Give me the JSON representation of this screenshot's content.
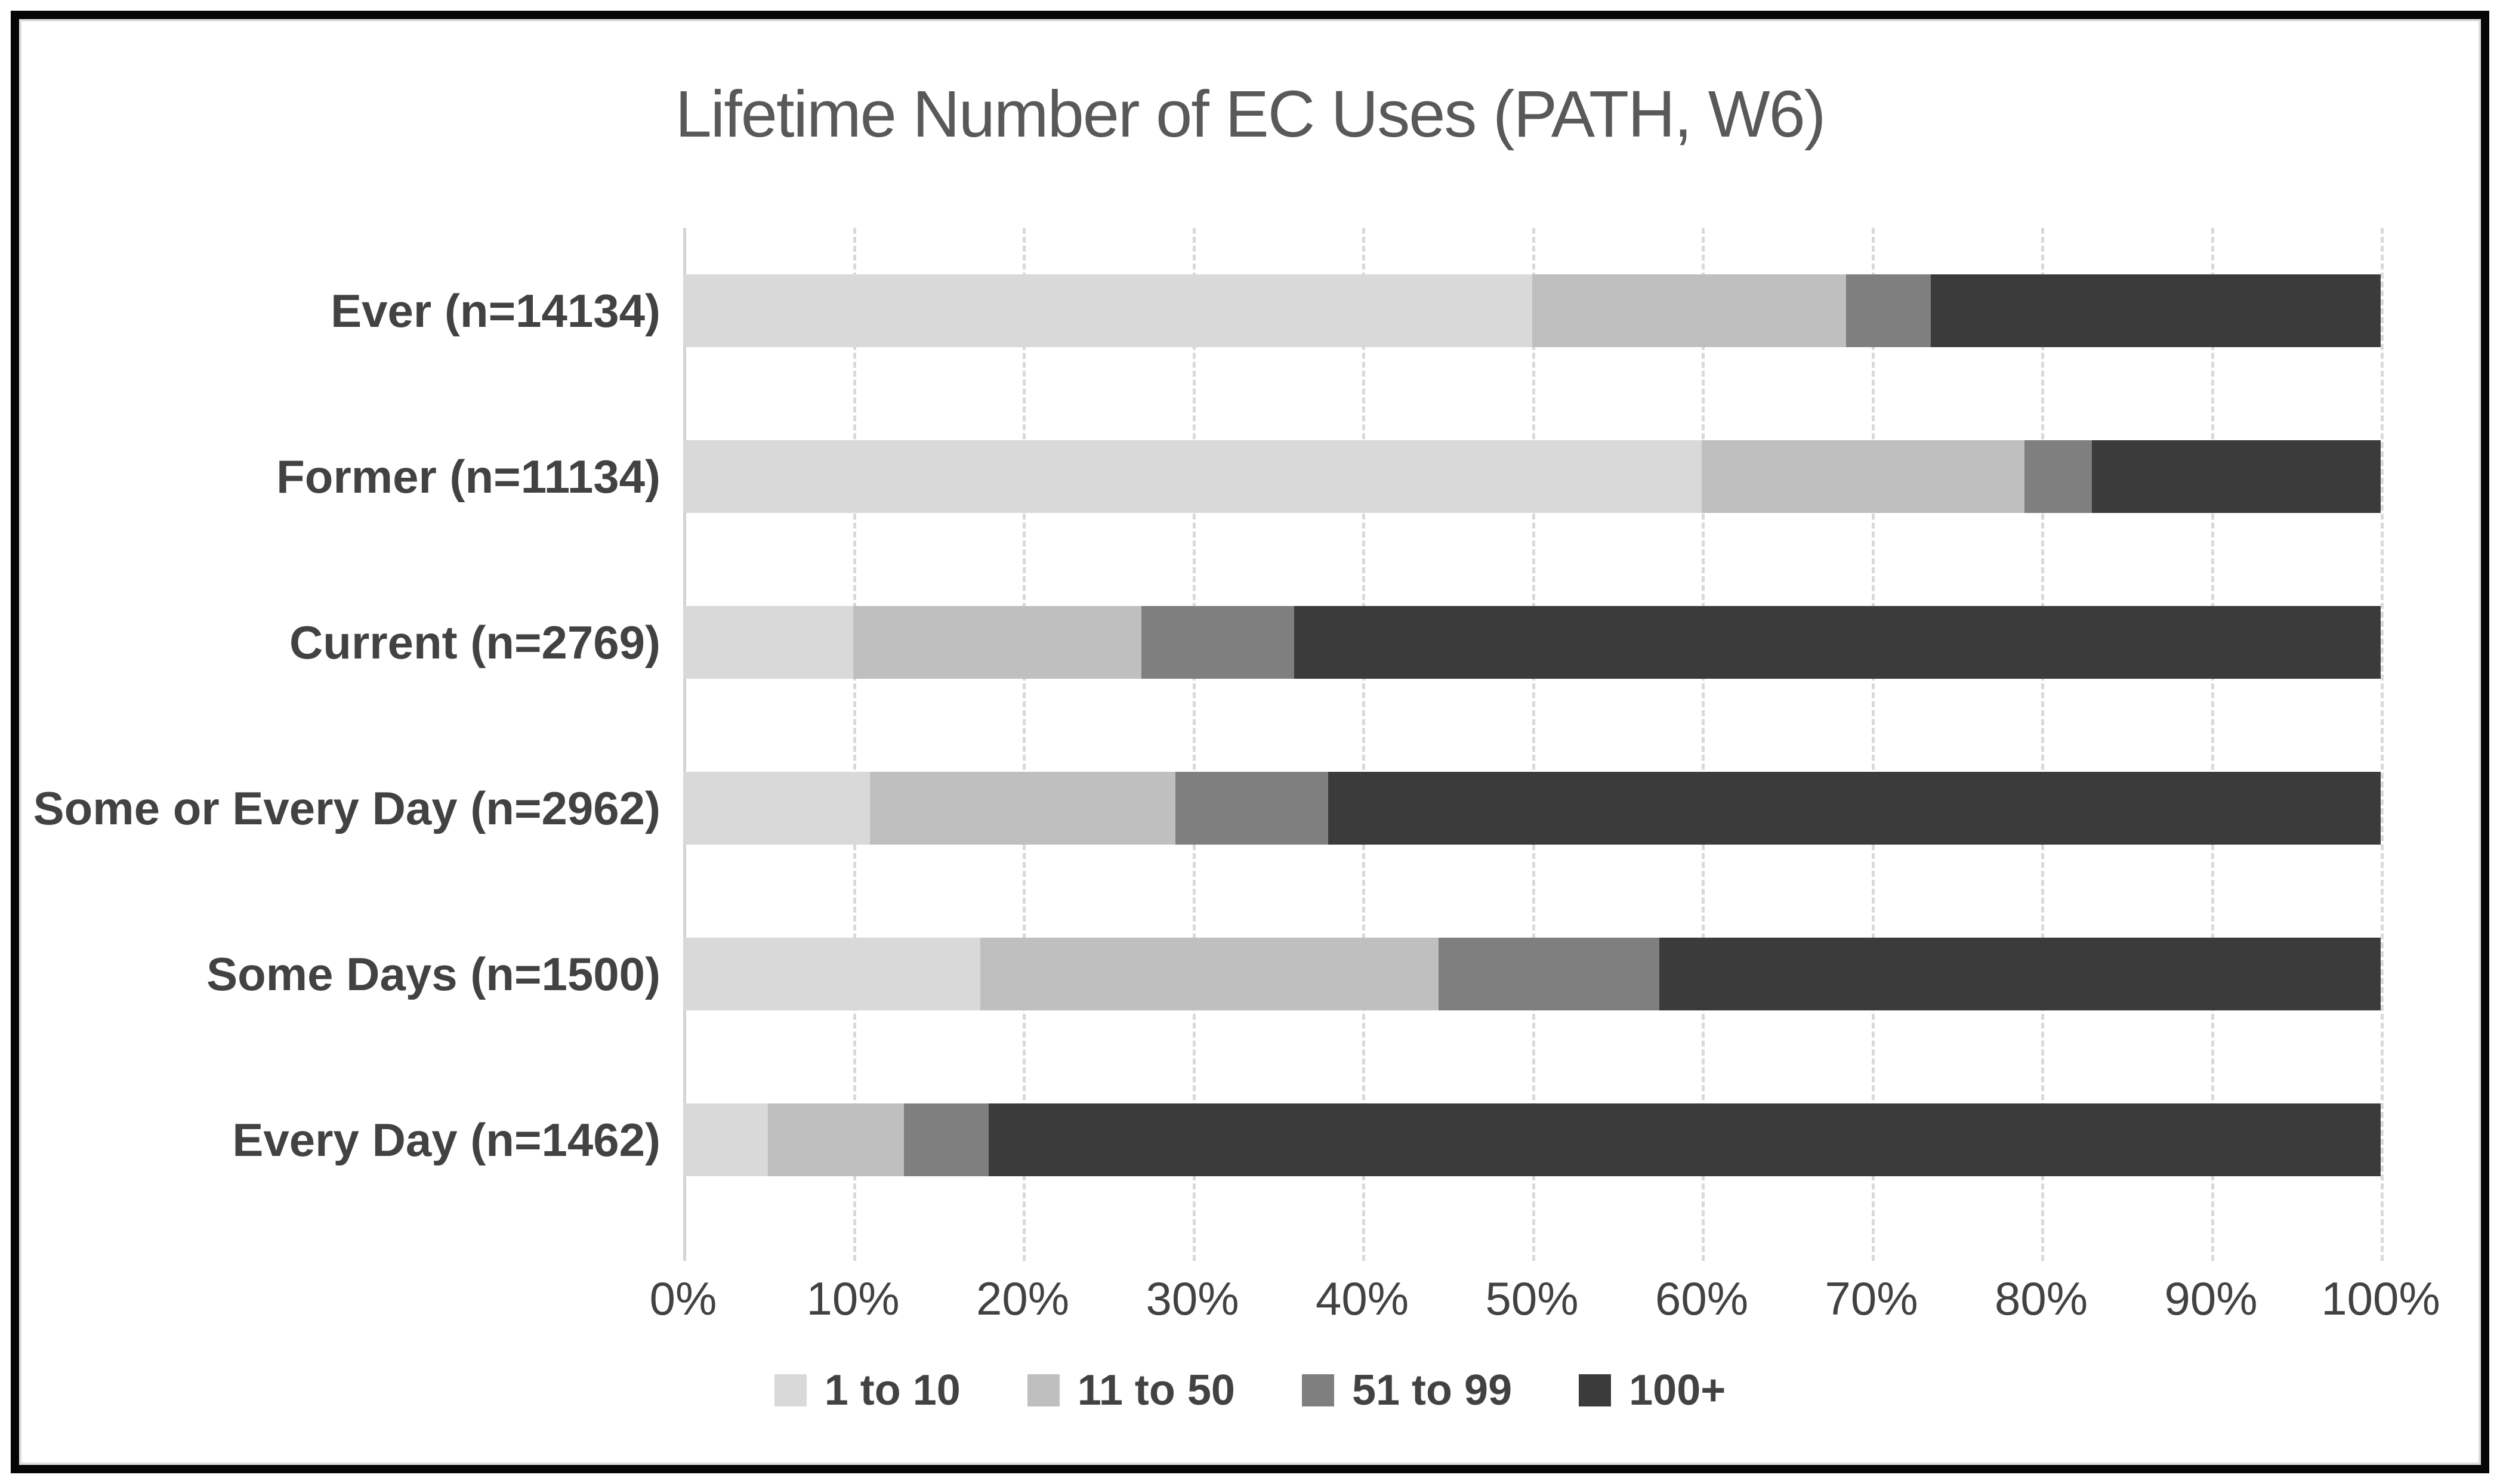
{
  "frame": {
    "border_color": "#060606",
    "background": "#ffffff"
  },
  "chart_data": {
    "type": "bar",
    "subtype": "horizontal-stacked-100pct",
    "title": "Lifetime Number of EC Uses (PATH, W6)",
    "categories": [
      "Ever (n=14134)",
      "Former (n=11134)",
      "Current (n=2769)",
      "Some or Every Day (n=2962)",
      "Some Days (n=1500)",
      "Every Day (n=1462)"
    ],
    "series": [
      {
        "name": "1 to 10",
        "color": "#d9d9d9",
        "values": [
          50,
          60,
          10,
          11,
          17.5,
          5
        ]
      },
      {
        "name": "11 to 50",
        "color": "#bfbfbf",
        "values": [
          18.5,
          19,
          17,
          18,
          27,
          8
        ]
      },
      {
        "name": "51 to 99",
        "color": "#7f7f7f",
        "values": [
          5,
          4,
          9,
          9,
          13,
          5
        ]
      },
      {
        "name": "100+",
        "color": "#3b3b3b",
        "values": [
          26.5,
          17,
          64,
          62,
          42.5,
          82
        ]
      }
    ],
    "x_axis": {
      "min": 0,
      "max": 100,
      "tick_step": 10,
      "ticks": [
        "0%",
        "10%",
        "20%",
        "30%",
        "40%",
        "50%",
        "60%",
        "70%",
        "80%",
        "90%",
        "100%"
      ],
      "gridlines": true,
      "gridline_style": "dashed"
    },
    "legend": {
      "position": "bottom",
      "entries": [
        "1 to 10",
        "11 to 50",
        "51 to 99",
        "100+"
      ]
    },
    "colors": {
      "title_text": "#595959",
      "label_text": "#424242",
      "gridline": "#d9d9d9",
      "axis_line": "#d4d4d4"
    }
  }
}
